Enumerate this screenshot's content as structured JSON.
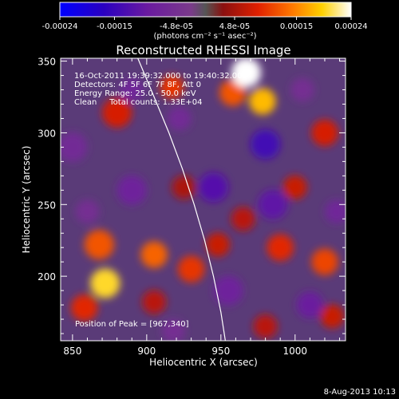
{
  "chart_data": {
    "type": "heatmap",
    "title": "Reconstructed RHESSI Image",
    "xlabel": "Heliocentric X (arcsec)",
    "ylabel": "Heliocentric Y (arcsec)",
    "xlim": [
      842,
      1034
    ],
    "ylim": [
      155,
      352
    ],
    "x_ticks": [
      850,
      900,
      950,
      1000
    ],
    "y_ticks": [
      200,
      250,
      300,
      350
    ],
    "colorbar": {
      "ticks": [
        "-0.00024",
        "-0.00015",
        "-4.8e-05",
        "4.8e-05",
        "0.00015",
        "0.00024"
      ],
      "tick_values": [
        -0.00024,
        -0.00015,
        -4.8e-05,
        4.8e-05,
        0.00015,
        0.00024
      ],
      "range": [
        -0.00024,
        0.00024
      ],
      "unit_label": "(photons cm⁻² s⁻¹ asec⁻²)"
    },
    "annotations": [
      "16-Oct-2011 19:39:32.000 to 19:40:32.000",
      "Detectors: 4F 5F 6F 7F 8F, Att 0",
      "Energy Range: 25.0 - 50.0 keV",
      "Clean     Total counts: 1.33E+04"
    ],
    "peak_label": "Position of Peak = [967,340]",
    "peak_position": [
      967,
      340
    ],
    "limb_curve": [
      [
        894,
        352
      ],
      [
        905,
        325
      ],
      [
        915,
        300
      ],
      [
        924,
        275
      ],
      [
        932,
        250
      ],
      [
        939,
        225
      ],
      [
        945,
        200
      ],
      [
        950,
        175
      ],
      [
        953,
        155
      ]
    ],
    "sources": [
      {
        "x": 967,
        "y": 342,
        "value": 0.00024,
        "r": 10
      },
      {
        "x": 978,
        "y": 322,
        "value": 0.00018,
        "r": 9
      },
      {
        "x": 958,
        "y": 328,
        "value": 0.00012,
        "r": 9
      },
      {
        "x": 880,
        "y": 314,
        "value": 8e-05,
        "r": 10
      },
      {
        "x": 917,
        "y": 332,
        "value": 0.0001,
        "r": 8
      },
      {
        "x": 868,
        "y": 222,
        "value": 0.00012,
        "r": 10
      },
      {
        "x": 872,
        "y": 195,
        "value": 0.0002,
        "r": 10
      },
      {
        "x": 905,
        "y": 215,
        "value": 0.00013,
        "r": 9
      },
      {
        "x": 930,
        "y": 205,
        "value": 0.0001,
        "r": 9
      },
      {
        "x": 858,
        "y": 178,
        "value": 9e-05,
        "r": 9
      },
      {
        "x": 948,
        "y": 222,
        "value": 7e-05,
        "r": 8
      },
      {
        "x": 990,
        "y": 220,
        "value": 9e-05,
        "r": 9
      },
      {
        "x": 1020,
        "y": 210,
        "value": 0.00011,
        "r": 9
      },
      {
        "x": 1000,
        "y": 262,
        "value": 7e-05,
        "r": 8
      },
      {
        "x": 965,
        "y": 240,
        "value": 6e-05,
        "r": 8
      },
      {
        "x": 1020,
        "y": 300,
        "value": 8e-05,
        "r": 9
      },
      {
        "x": 1025,
        "y": 172,
        "value": 7e-05,
        "r": 8
      },
      {
        "x": 980,
        "y": 165,
        "value": 6e-05,
        "r": 8
      },
      {
        "x": 925,
        "y": 262,
        "value": 5e-05,
        "r": 8
      },
      {
        "x": 905,
        "y": 182,
        "value": 6e-05,
        "r": 8
      },
      {
        "x": 850,
        "y": 290,
        "value": -6e-05,
        "r": 10
      },
      {
        "x": 890,
        "y": 260,
        "value": -8e-05,
        "r": 10
      },
      {
        "x": 890,
        "y": 330,
        "value": -7e-05,
        "r": 8
      },
      {
        "x": 945,
        "y": 262,
        "value": -0.00012,
        "r": 10
      },
      {
        "x": 980,
        "y": 292,
        "value": -0.00014,
        "r": 10
      },
      {
        "x": 985,
        "y": 250,
        "value": -0.00011,
        "r": 10
      },
      {
        "x": 955,
        "y": 190,
        "value": -8e-05,
        "r": 10
      },
      {
        "x": 1010,
        "y": 180,
        "value": -9e-05,
        "r": 9
      },
      {
        "x": 1028,
        "y": 245,
        "value": -7e-05,
        "r": 8
      },
      {
        "x": 922,
        "y": 310,
        "value": -6e-05,
        "r": 8
      },
      {
        "x": 860,
        "y": 245,
        "value": -5e-05,
        "r": 8
      },
      {
        "x": 1005,
        "y": 330,
        "value": -5e-05,
        "r": 8
      },
      {
        "x": 918,
        "y": 162,
        "value": -5e-05,
        "r": 8
      }
    ]
  },
  "footer": {
    "date": "8-Aug-2013 10:13"
  }
}
